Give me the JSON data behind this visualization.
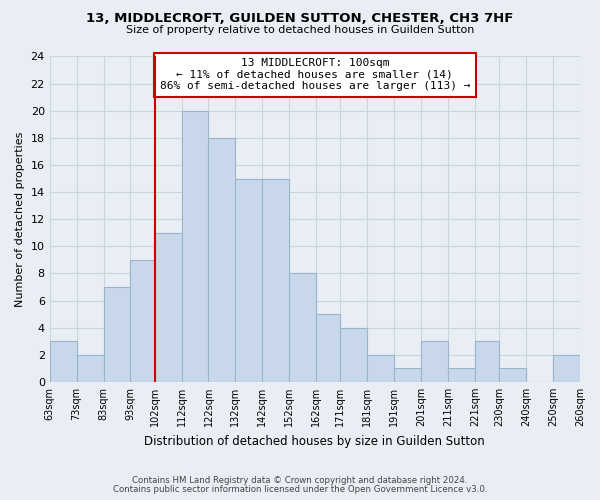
{
  "title": "13, MIDDLECROFT, GUILDEN SUTTON, CHESTER, CH3 7HF",
  "subtitle": "Size of property relative to detached houses in Guilden Sutton",
  "xlabel": "Distribution of detached houses by size in Guilden Sutton",
  "ylabel": "Number of detached properties",
  "bin_edges": [
    63,
    73,
    83,
    93,
    102,
    112,
    122,
    132,
    142,
    152,
    162,
    171,
    181,
    191,
    201,
    211,
    221,
    230,
    240,
    250,
    260
  ],
  "counts": [
    3,
    2,
    7,
    9,
    11,
    20,
    18,
    15,
    15,
    8,
    5,
    4,
    2,
    1,
    3,
    1,
    3,
    1,
    0,
    2
  ],
  "bar_color": "#c8d8ea",
  "bar_edge_color": "#9ab4cc",
  "vline_x": 102,
  "vline_color": "#cc0000",
  "annotation_line1": "13 MIDDLECROFT: 100sqm",
  "annotation_line2": "← 11% of detached houses are smaller (14)",
  "annotation_line3": "86% of semi-detached houses are larger (113) →",
  "annotation_box_color": "white",
  "annotation_box_edge_color": "#cc0000",
  "tick_labels": [
    "63sqm",
    "73sqm",
    "83sqm",
    "93sqm",
    "102sqm",
    "112sqm",
    "122sqm",
    "132sqm",
    "142sqm",
    "152sqm",
    "162sqm",
    "171sqm",
    "181sqm",
    "191sqm",
    "201sqm",
    "211sqm",
    "221sqm",
    "230sqm",
    "240sqm",
    "250sqm",
    "260sqm"
  ],
  "ylim": [
    0,
    24
  ],
  "yticks": [
    0,
    2,
    4,
    6,
    8,
    10,
    12,
    14,
    16,
    18,
    20,
    22,
    24
  ],
  "footer1": "Contains HM Land Registry data © Crown copyright and database right 2024.",
  "footer2": "Contains public sector information licensed under the Open Government Licence v3.0.",
  "background_color": "#e8eef4",
  "plot_bg_color": "#e8eef4",
  "grid_color": "#c8d4de"
}
